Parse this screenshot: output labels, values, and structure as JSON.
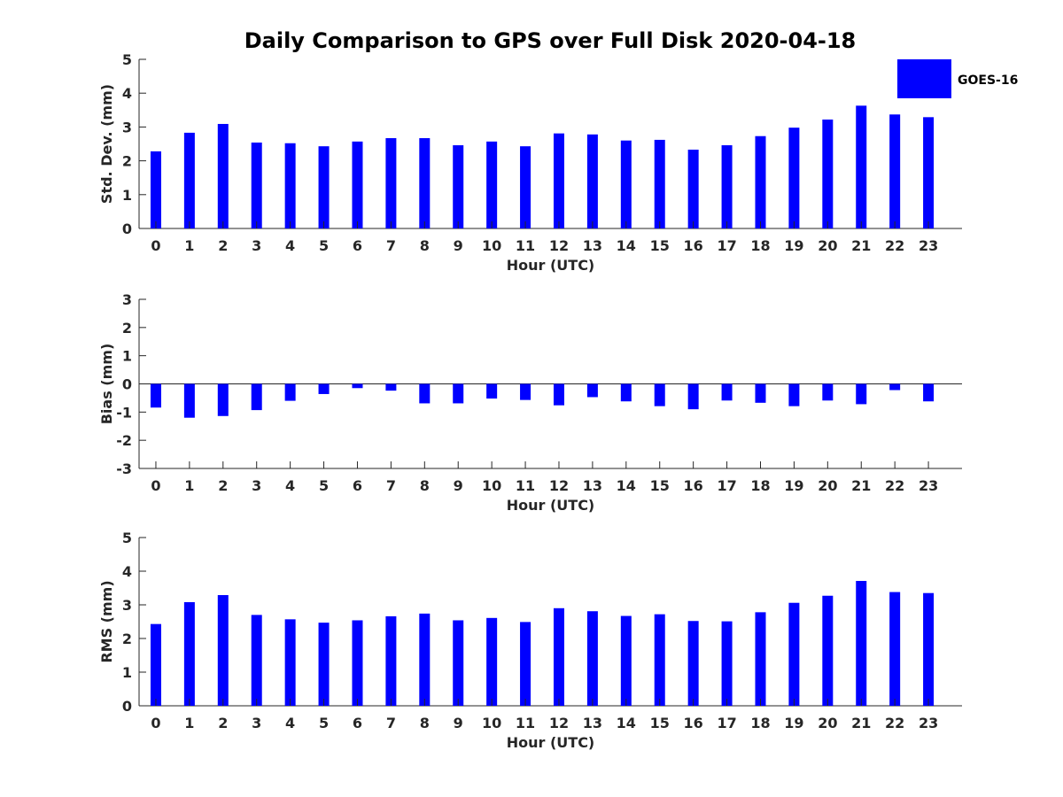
{
  "chart_data": {
    "title": "Daily Comparison to GPS over Full Disk 2020-04-18",
    "legend": {
      "label": "GOES-16",
      "color": "#0000FF",
      "placement": "top-right"
    },
    "panels": [
      {
        "type": "bar",
        "ylabel": "Std. Dev. (mm)",
        "xlabel": "Hour (UTC)",
        "ylim": [
          0,
          5
        ],
        "yticks": [
          0,
          1,
          2,
          3,
          4,
          5
        ],
        "categories": [
          "0",
          "1",
          "2",
          "3",
          "4",
          "5",
          "6",
          "7",
          "8",
          "9",
          "10",
          "11",
          "12",
          "13",
          "14",
          "15",
          "16",
          "17",
          "18",
          "19",
          "20",
          "21",
          "22",
          "23"
        ],
        "values": [
          2.28,
          2.83,
          3.09,
          2.54,
          2.52,
          2.43,
          2.57,
          2.67,
          2.67,
          2.46,
          2.57,
          2.43,
          2.81,
          2.78,
          2.6,
          2.62,
          2.33,
          2.46,
          2.73,
          2.98,
          3.22,
          3.63,
          3.37,
          3.29
        ]
      },
      {
        "type": "bar",
        "ylabel": "Bias (mm)",
        "xlabel": "Hour (UTC)",
        "ylim": [
          -3,
          3
        ],
        "yticks": [
          -3,
          -2,
          -1,
          0,
          1,
          2,
          3
        ],
        "zero_line": true,
        "categories": [
          "0",
          "1",
          "2",
          "3",
          "4",
          "5",
          "6",
          "7",
          "8",
          "9",
          "10",
          "11",
          "12",
          "13",
          "14",
          "15",
          "16",
          "17",
          "18",
          "19",
          "20",
          "21",
          "22",
          "23"
        ],
        "values": [
          -0.84,
          -1.2,
          -1.14,
          -0.93,
          -0.6,
          -0.36,
          -0.15,
          -0.24,
          -0.69,
          -0.69,
          -0.52,
          -0.57,
          -0.76,
          -0.47,
          -0.62,
          -0.79,
          -0.9,
          -0.59,
          -0.67,
          -0.79,
          -0.59,
          -0.72,
          -0.22,
          -0.62
        ]
      },
      {
        "type": "bar",
        "ylabel": "RMS (mm)",
        "xlabel": "Hour (UTC)",
        "ylim": [
          0,
          5
        ],
        "yticks": [
          0,
          1,
          2,
          3,
          4,
          5
        ],
        "categories": [
          "0",
          "1",
          "2",
          "3",
          "4",
          "5",
          "6",
          "7",
          "8",
          "9",
          "10",
          "11",
          "12",
          "13",
          "14",
          "15",
          "16",
          "17",
          "18",
          "19",
          "20",
          "21",
          "22",
          "23"
        ],
        "values": [
          2.43,
          3.08,
          3.29,
          2.7,
          2.57,
          2.47,
          2.54,
          2.66,
          2.74,
          2.54,
          2.61,
          2.49,
          2.9,
          2.81,
          2.67,
          2.72,
          2.52,
          2.51,
          2.78,
          3.06,
          3.27,
          3.71,
          3.38,
          3.35
        ]
      }
    ]
  }
}
